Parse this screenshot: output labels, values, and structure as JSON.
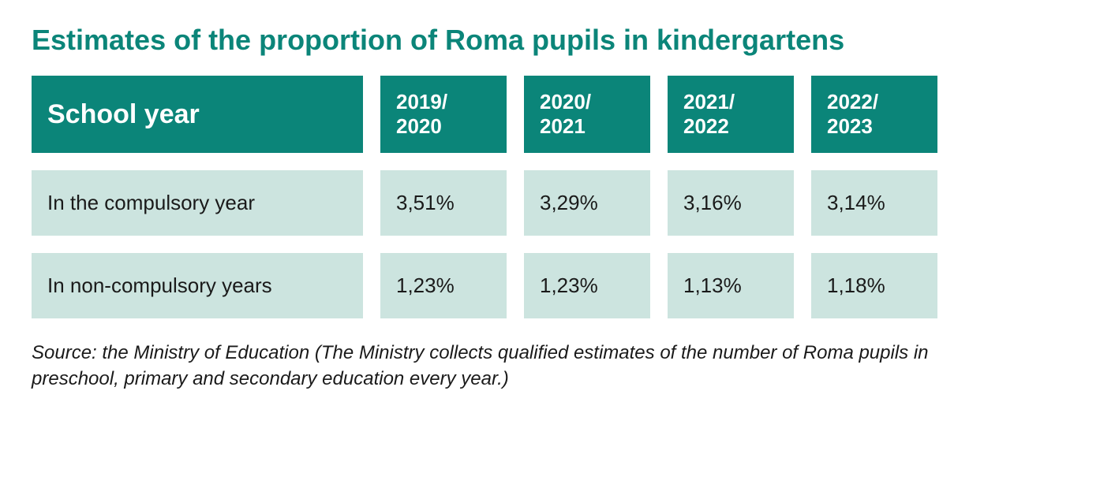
{
  "title": "Estimates of the proportion of Roma pupils in kindergartens",
  "table": {
    "type": "table",
    "header_bg_color": "#0b8579",
    "header_text_color": "#ffffff",
    "data_bg_color": "#cce4df",
    "data_text_color": "#1a1a1a",
    "title_color": "#0b8579",
    "title_fontsize": 36,
    "header_first_fontsize": 34,
    "header_year_fontsize": 26,
    "data_fontsize": 26,
    "cell_gap": 22,
    "row_gap": 22,
    "first_col_width": 420,
    "year_col_width": 160,
    "columns": [
      {
        "label": "School year"
      },
      {
        "label": "2019/\n2020"
      },
      {
        "label": "2020/\n2021"
      },
      {
        "label": "2021/\n2022"
      },
      {
        "label": "2022/\n2023"
      }
    ],
    "rows": [
      {
        "label": "In the compulsory year",
        "values": [
          "3,51%",
          "3,29%",
          "3,16%",
          "3,14%"
        ]
      },
      {
        "label": "In non-compulsory years",
        "values": [
          "1,23%",
          "1,23%",
          "1,13%",
          "1,18%"
        ]
      }
    ]
  },
  "source": "Source: the Ministry of Education (The Ministry collects qualified estimates of the number of Roma pupils in preschool, primary and secondary education every year.)",
  "source_fontsize": 24,
  "source_color": "#1a1a1a",
  "background_color": "#ffffff"
}
